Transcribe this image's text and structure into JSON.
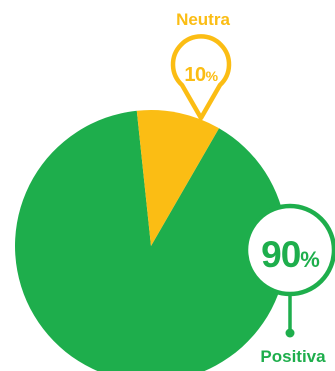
{
  "chart_data": {
    "type": "pie",
    "title": "",
    "slices": [
      {
        "label": "Neutra",
        "value": 10,
        "value_label": "10",
        "unit": "%",
        "color": "#fbbd14"
      },
      {
        "label": "Positiva",
        "value": 90,
        "value_label": "90",
        "unit": "%",
        "color": "#1eae4c"
      }
    ],
    "legend": "none"
  }
}
